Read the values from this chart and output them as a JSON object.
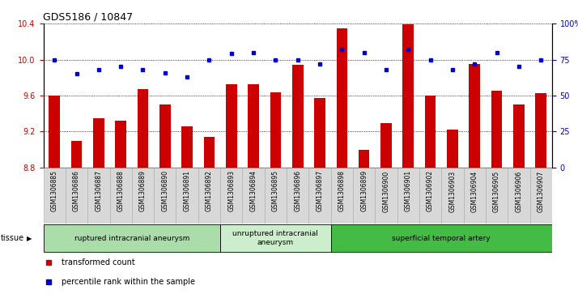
{
  "title": "GDS5186 / 10847",
  "samples": [
    "GSM1306885",
    "GSM1306886",
    "GSM1306887",
    "GSM1306888",
    "GSM1306889",
    "GSM1306890",
    "GSM1306891",
    "GSM1306892",
    "GSM1306893",
    "GSM1306894",
    "GSM1306895",
    "GSM1306896",
    "GSM1306897",
    "GSM1306898",
    "GSM1306899",
    "GSM1306900",
    "GSM1306901",
    "GSM1306902",
    "GSM1306903",
    "GSM1306904",
    "GSM1306905",
    "GSM1306906",
    "GSM1306907"
  ],
  "bar_values": [
    9.6,
    9.1,
    9.35,
    9.32,
    9.67,
    9.5,
    9.26,
    9.14,
    9.73,
    9.73,
    9.64,
    9.94,
    9.57,
    10.35,
    9.0,
    9.29,
    10.39,
    9.6,
    9.22,
    9.95,
    9.65,
    9.5,
    9.63
  ],
  "dot_values": [
    75,
    65,
    68,
    70,
    68,
    66,
    63,
    75,
    79,
    80,
    75,
    75,
    72,
    82,
    80,
    68,
    82,
    75,
    68,
    72,
    80,
    70,
    75
  ],
  "ylim_left": [
    8.8,
    10.4
  ],
  "ylim_right": [
    0,
    100
  ],
  "yticks_left": [
    8.8,
    9.2,
    9.6,
    10.0,
    10.4
  ],
  "yticks_right": [
    0,
    25,
    50,
    75,
    100
  ],
  "ytick_labels_right": [
    "0",
    "25",
    "50",
    "75",
    "100%"
  ],
  "bar_color": "#cc0000",
  "dot_color": "#0000cc",
  "plot_bg": "#ffffff",
  "xtick_bg": "#d8d8d8",
  "groups": [
    {
      "label": "ruptured intracranial aneurysm",
      "start": 0,
      "end": 8,
      "color": "#aaddaa"
    },
    {
      "label": "unruptured intracranial\naneurysm",
      "start": 8,
      "end": 13,
      "color": "#cceecc"
    },
    {
      "label": "superficial temporal artery",
      "start": 13,
      "end": 23,
      "color": "#44bb44"
    }
  ],
  "legend_bar_label": "transformed count",
  "legend_dot_label": "percentile rank within the sample",
  "tissue_label": "tissue"
}
